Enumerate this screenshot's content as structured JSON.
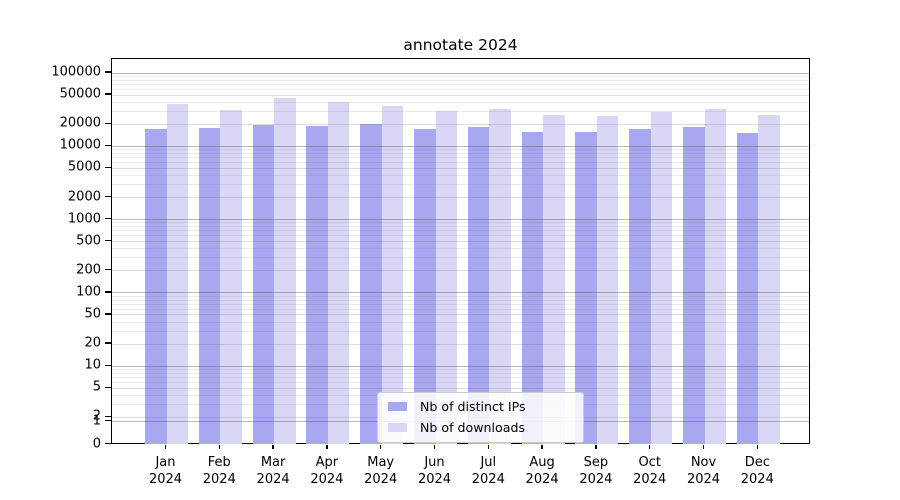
{
  "chart_data": {
    "type": "bar",
    "title": "annotate 2024",
    "scale": "symlog-y",
    "grid": "both",
    "legend_position": "lower center",
    "categories": [
      "Jan",
      "Feb",
      "Mar",
      "Apr",
      "May",
      "Jun",
      "Jul",
      "Aug",
      "Sep",
      "Oct",
      "Nov",
      "Dec"
    ],
    "x_tick_year": "2024",
    "y_tick_labels": [
      "100000",
      "50000",
      "20000",
      "10000",
      "5000",
      "2000",
      "1000",
      "500",
      "200",
      "100",
      "50",
      "20",
      "10",
      "5",
      "2",
      "1",
      "0"
    ],
    "ylim": [
      0,
      155000
    ],
    "series": [
      {
        "name": "Nb of distinct IPs",
        "color": "#a8a8f0",
        "values": [
          17000,
          17500,
          19500,
          19000,
          20000,
          17000,
          18500,
          15700,
          15700,
          17000,
          18200,
          15300
        ]
      },
      {
        "name": "Nb of downloads",
        "color": "#d8d8f6",
        "values": [
          37500,
          31000,
          45000,
          40000,
          35500,
          30000,
          32000,
          26500,
          26000,
          29500,
          32000,
          26500
        ]
      }
    ]
  }
}
